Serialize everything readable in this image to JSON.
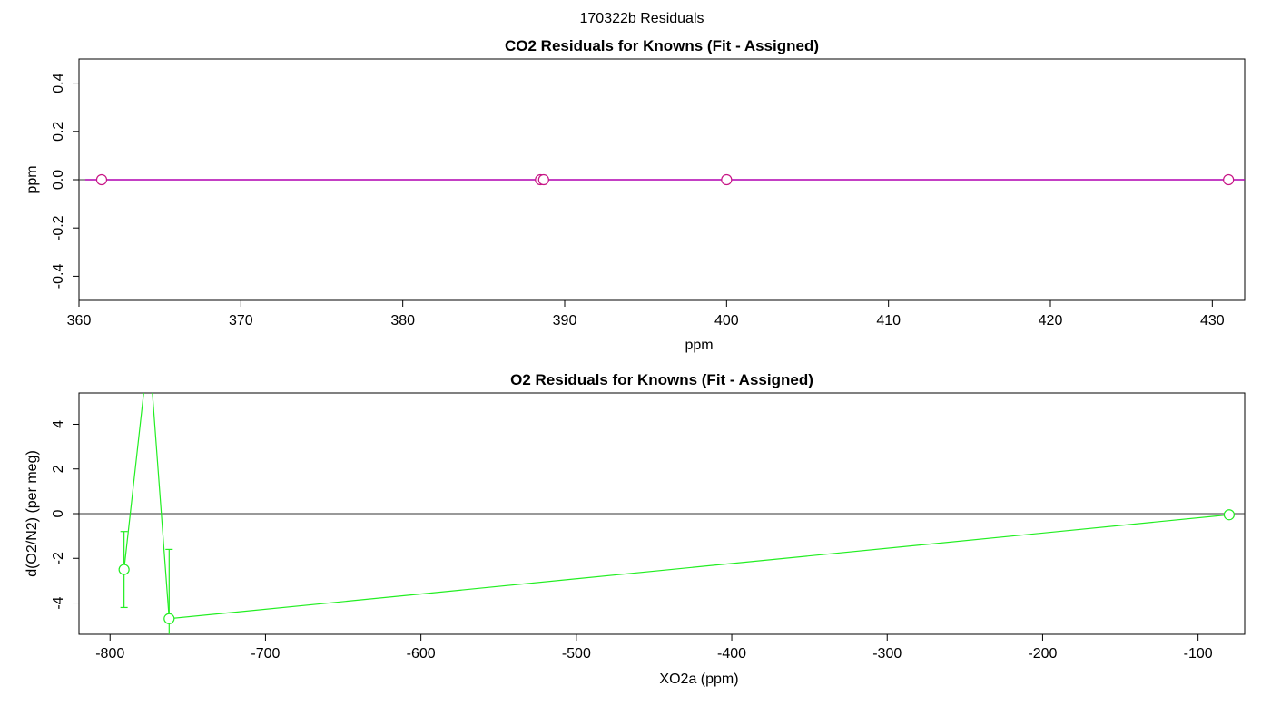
{
  "page_title": "170322b  Residuals",
  "chart_data": [
    {
      "type": "line",
      "title": "CO2 Residuals for Knowns (Fit - Assigned)",
      "xlabel": "ppm",
      "ylabel": "ppm",
      "xlim": [
        360,
        432
      ],
      "ylim": [
        -0.5,
        0.5
      ],
      "xticks": [
        360,
        370,
        380,
        390,
        400,
        410,
        420,
        430
      ],
      "yticks": [
        -0.4,
        -0.2,
        0.0,
        0.2,
        0.4
      ],
      "ytick_labels": [
        "-0.4",
        "-0.2",
        "0.0",
        "0.2",
        "0.4"
      ],
      "reference_line_y": 0,
      "grid": false,
      "colors": {
        "series": "#c71585",
        "marker_fill": "#ffffff",
        "line": "#b000b0"
      },
      "series": [
        {
          "x": [
            361.4,
            388.5,
            388.7,
            400.0,
            431.0
          ],
          "y": [
            0.0,
            0.0,
            0.0,
            0.0,
            0.0
          ],
          "err": [
            0.0,
            0.0,
            0.0,
            0.0,
            0.0
          ]
        }
      ]
    },
    {
      "type": "line",
      "title": "O2 Residuals for Knowns (Fit - Assigned)",
      "xlabel": "XO2a (ppm)",
      "ylabel": "d(O2/N2) (per meg)",
      "xlim": [
        -820,
        -70
      ],
      "ylim": [
        -5.4,
        5.4
      ],
      "xticks": [
        -800,
        -700,
        -600,
        -500,
        -400,
        -300,
        -200,
        -100
      ],
      "yticks": [
        -4,
        -2,
        0,
        2,
        4
      ],
      "ytick_labels": [
        "-4",
        "-2",
        "0",
        "2",
        "4"
      ],
      "reference_line_y": 0,
      "grid": false,
      "colors": {
        "series": "#22ee22",
        "marker_fill": "#ffffff"
      },
      "series": [
        {
          "x": [
            -791,
            -775,
            -762,
            -80
          ],
          "y": [
            -2.5,
            7.5,
            -4.7,
            -0.05
          ],
          "err": [
            1.7,
            0,
            3.1,
            0
          ],
          "marker": [
            true,
            false,
            true,
            true
          ]
        }
      ]
    }
  ]
}
